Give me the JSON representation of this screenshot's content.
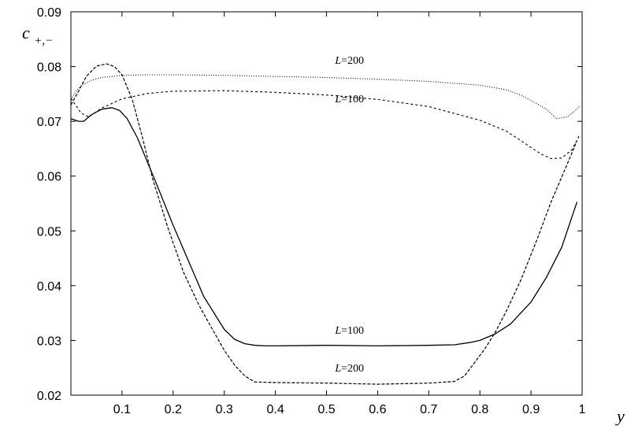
{
  "chart_data": {
    "type": "line",
    "xlabel": "y",
    "ylabel_main": "c",
    "ylabel_sub": "+,−",
    "xlim": [
      0.0,
      1.0
    ],
    "ylim": [
      0.02,
      0.09
    ],
    "grid": false,
    "legend": "none",
    "x_ticks": [
      0.1,
      0.2,
      0.3,
      0.4,
      0.5,
      0.6,
      0.7,
      0.8,
      0.9,
      1.0
    ],
    "x_tick_labels": [
      "0.1",
      "0.2",
      "0.3",
      "0.4",
      "0.5",
      "0.6",
      "0.7",
      "0.8",
      "0.9",
      "1"
    ],
    "y_ticks": [
      0.02,
      0.03,
      0.04,
      0.05,
      0.06,
      0.07,
      0.08,
      0.09
    ],
    "y_tick_labels": [
      "0.02",
      "0.03",
      "0.04",
      "0.05",
      "0.06",
      "0.07",
      "0.08",
      "0.09"
    ],
    "series": [
      {
        "style": "solid",
        "x": [
          0.0,
          0.015,
          0.025,
          0.04,
          0.06,
          0.08,
          0.095,
          0.11,
          0.13,
          0.15,
          0.17,
          0.2,
          0.23,
          0.26,
          0.28,
          0.3,
          0.32,
          0.34,
          0.36,
          0.38,
          0.4,
          0.5,
          0.6,
          0.7,
          0.75,
          0.78,
          0.8,
          0.83,
          0.86,
          0.9,
          0.93,
          0.96,
          0.99
        ],
        "y": [
          0.0705,
          0.07,
          0.07,
          0.0712,
          0.0722,
          0.0725,
          0.072,
          0.0705,
          0.067,
          0.0625,
          0.058,
          0.051,
          0.0445,
          0.038,
          0.035,
          0.032,
          0.0302,
          0.0294,
          0.0291,
          0.029,
          0.029,
          0.0291,
          0.029,
          0.0291,
          0.0292,
          0.0296,
          0.03,
          0.0312,
          0.033,
          0.037,
          0.0415,
          0.047,
          0.0553
        ]
      },
      {
        "style": "dashed",
        "x": [
          0.0,
          0.015,
          0.03,
          0.05,
          0.07,
          0.085,
          0.1,
          0.12,
          0.14,
          0.16,
          0.19,
          0.22,
          0.25,
          0.28,
          0.3,
          0.32,
          0.34,
          0.36,
          0.4,
          0.5,
          0.6,
          0.7,
          0.75,
          0.77,
          0.79,
          0.81,
          0.83,
          0.85,
          0.88,
          0.91,
          0.94,
          0.97,
          0.99
        ],
        "y": [
          0.073,
          0.0755,
          0.0782,
          0.0801,
          0.0805,
          0.08,
          0.0785,
          0.074,
          0.067,
          0.0595,
          0.0505,
          0.0425,
          0.0365,
          0.0315,
          0.0282,
          0.0255,
          0.0235,
          0.0224,
          0.0223,
          0.0222,
          0.022,
          0.0222,
          0.0225,
          0.0235,
          0.026,
          0.0285,
          0.0315,
          0.035,
          0.041,
          0.048,
          0.0555,
          0.062,
          0.0665
        ]
      },
      {
        "style": "dotted",
        "x": [
          0.0,
          0.01,
          0.02,
          0.04,
          0.06,
          0.08,
          0.1,
          0.15,
          0.2,
          0.3,
          0.4,
          0.5,
          0.6,
          0.7,
          0.8,
          0.85,
          0.88,
          0.91,
          0.93,
          0.95,
          0.97,
          0.985,
          0.995
        ],
        "y": [
          0.074,
          0.0755,
          0.0765,
          0.0775,
          0.078,
          0.0782,
          0.0784,
          0.0785,
          0.0785,
          0.0784,
          0.0782,
          0.078,
          0.0777,
          0.0773,
          0.0766,
          0.0758,
          0.0748,
          0.0733,
          0.0722,
          0.0705,
          0.0708,
          0.0718,
          0.0728
        ]
      },
      {
        "style": "densely-dashed",
        "x": [
          0.0,
          0.02,
          0.035,
          0.06,
          0.1,
          0.15,
          0.2,
          0.3,
          0.4,
          0.5,
          0.6,
          0.7,
          0.8,
          0.85,
          0.88,
          0.9,
          0.92,
          0.94,
          0.96,
          0.98,
          0.995
        ],
        "y": [
          0.0742,
          0.0715,
          0.0708,
          0.0724,
          0.0741,
          0.0751,
          0.0755,
          0.0756,
          0.0753,
          0.0748,
          0.074,
          0.0727,
          0.0702,
          0.0683,
          0.0665,
          0.0652,
          0.064,
          0.0632,
          0.0633,
          0.0648,
          0.0675
        ]
      }
    ],
    "annotations": [
      {
        "text": "L=200",
        "x": 0.545,
        "y": 0.0805
      },
      {
        "text": "L=100",
        "x": 0.545,
        "y": 0.0735
      },
      {
        "text": "L=100",
        "x": 0.545,
        "y": 0.0312
      },
      {
        "text": "L=200",
        "x": 0.545,
        "y": 0.0243
      }
    ]
  }
}
